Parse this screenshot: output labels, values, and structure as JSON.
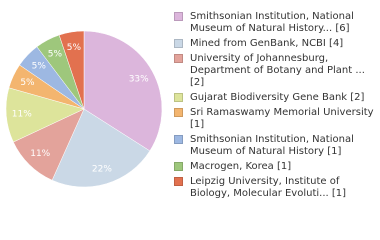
{
  "chart_data": {
    "type": "pie",
    "categories": [
      "Smithsonian Institution, National Museum of Natural History... [6]",
      "Mined from GenBank, NCBI [4]",
      "University of Johannesburg, Department of Botany and Plant ... [2]",
      "Gujarat Biodiversity Gene Bank [2]",
      "Sri Ramaswamy Memorial University [1]",
      "Smithsonian Institution, National Museum of Natural History [1]",
      "Macrogen, Korea [1]",
      "Leipzig University, Institute of Biology, Molecular Evoluti... [1]"
    ],
    "values": [
      33,
      22,
      11,
      11,
      5,
      5,
      5,
      5
    ],
    "value_labels": [
      "33%",
      "22%",
      "11%",
      "11%",
      "5%",
      "5%",
      "5%",
      "5%"
    ],
    "colors": [
      "#dcb6dc",
      "#cad8e6",
      "#e3a39b",
      "#dde49b",
      "#f3b56f",
      "#9db8e2",
      "#9ec77c",
      "#e2714f"
    ]
  }
}
